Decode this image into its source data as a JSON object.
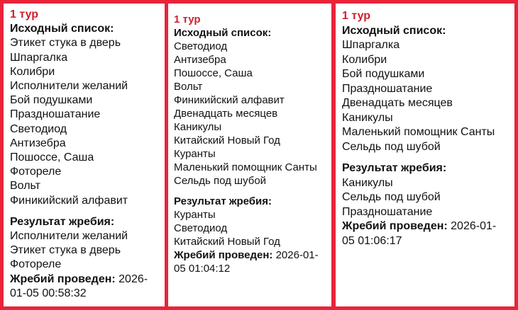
{
  "panels": [
    {
      "round": "1 тур",
      "source_label": "Исходный список:",
      "source": [
        "Этикет стука в дверь",
        "Шпаргалка",
        "Колибри",
        "Исполнители желаний",
        "Бой подушками",
        "Праздношатание",
        "Светодиод",
        "Антизебра",
        "Пошоссе, Саша",
        "Фотореле",
        "Вольт",
        "Финикийский алфавит"
      ],
      "result_label": "Результат жребия:",
      "result": [
        "Исполнители желаний",
        "Этикет стука в дверь",
        "Фотореле"
      ],
      "drawn_label": "Жребий проведен:",
      "drawn_at": "2026-01-05 00:58:32"
    },
    {
      "round": "1 тур",
      "source_label": "Исходный список:",
      "source": [
        "Светодиод",
        "Антизебра",
        "Пошоссе, Саша",
        "Вольт",
        "Финикийский алфавит",
        "Двенадцать месяцев",
        "Каникулы",
        "Китайский Новый Год",
        "Куранты",
        "Маленький помощник Санты",
        "Сельдь под шубой"
      ],
      "result_label": "Результат жребия:",
      "result": [
        "Куранты",
        "Светодиод",
        "Китайский Новый Год"
      ],
      "drawn_label": "Жребий проведен:",
      "drawn_at": "2026-01-05 01:04:12"
    },
    {
      "round": "1 тур",
      "source_label": "Исходный список:",
      "source": [
        "Шпаргалка",
        "Колибри",
        "Бой подушками",
        "Праздношатание",
        "Двенадцать месяцев",
        "Каникулы",
        "Маленький помощник Санты",
        "Сельдь под шубой"
      ],
      "result_label": "Результат жребия:",
      "result": [
        "Каникулы",
        "Сельдь под шубой",
        "Праздношатание"
      ],
      "drawn_label": "Жребий проведен:",
      "drawn_at": "2026-01-05 01:06:17"
    }
  ],
  "colors": {
    "border": "#e8243a",
    "round": "#d0202e"
  }
}
